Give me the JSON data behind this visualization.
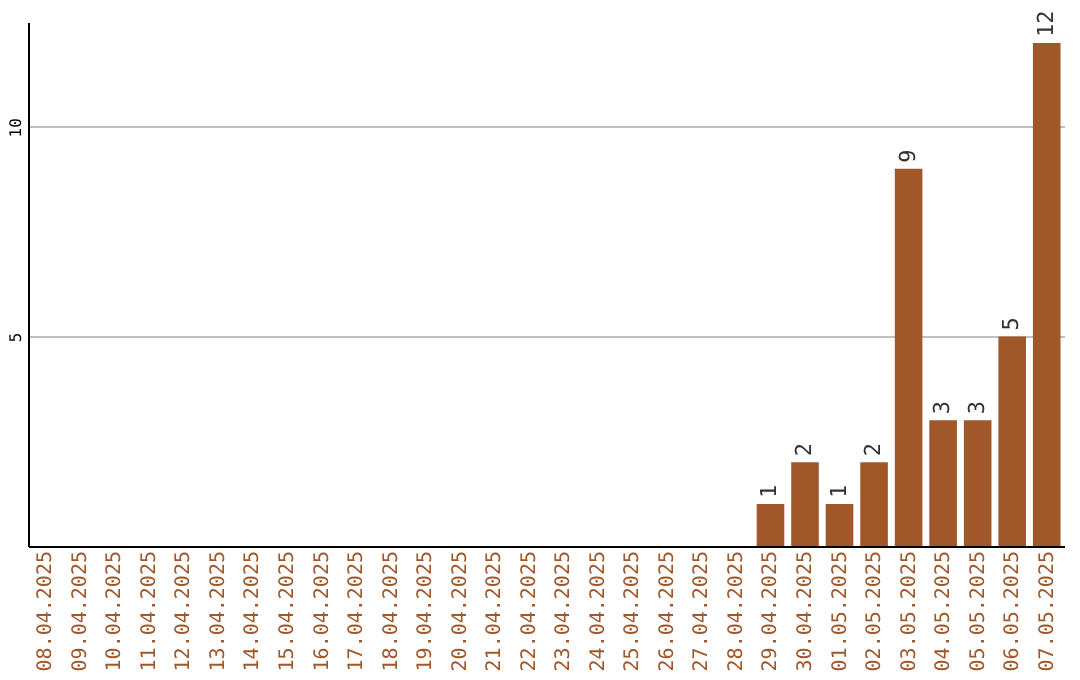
{
  "chart_data": {
    "type": "bar",
    "categories": [
      "08.04.2025",
      "09.04.2025",
      "10.04.2025",
      "11.04.2025",
      "12.04.2025",
      "13.04.2025",
      "14.04.2025",
      "15.04.2025",
      "16.04.2025",
      "17.04.2025",
      "18.04.2025",
      "19.04.2025",
      "20.04.2025",
      "21.04.2025",
      "22.04.2025",
      "23.04.2025",
      "24.04.2025",
      "25.04.2025",
      "26.04.2025",
      "27.04.2025",
      "28.04.2025",
      "29.04.2025",
      "30.04.2025",
      "01.05.2025",
      "02.05.2025",
      "03.05.2025",
      "04.05.2025",
      "05.05.2025",
      "06.05.2025",
      "07.05.2025"
    ],
    "values": [
      0,
      0,
      0,
      0,
      0,
      0,
      0,
      0,
      0,
      0,
      0,
      0,
      0,
      0,
      0,
      0,
      0,
      0,
      0,
      0,
      0,
      1,
      2,
      1,
      2,
      9,
      3,
      3,
      5,
      12
    ],
    "value_labels": [
      null,
      null,
      null,
      null,
      null,
      null,
      null,
      null,
      null,
      null,
      null,
      null,
      null,
      null,
      null,
      null,
      null,
      null,
      null,
      null,
      null,
      "1",
      "2",
      "1",
      "2",
      "9",
      "3",
      "3",
      "5",
      "12"
    ],
    "color": "#a0582a",
    "ylim": [
      0,
      12.5
    ],
    "yticks": [
      5,
      10
    ],
    "grid": "y"
  }
}
